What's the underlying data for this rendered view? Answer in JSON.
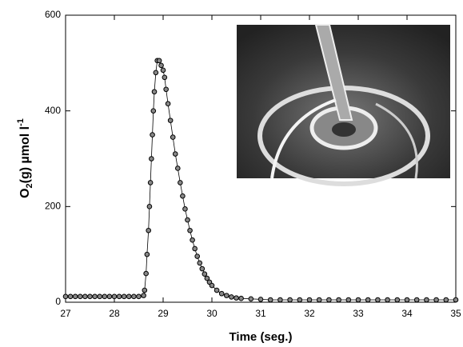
{
  "chart_data": {
    "type": "scatter",
    "xlabel": "Time (seg.)",
    "ylabel": [
      "O",
      "2",
      "(g) µmol l",
      "-1"
    ],
    "xlim": [
      27,
      35
    ],
    "xticks": [
      27,
      28,
      29,
      30,
      31,
      32,
      33,
      34,
      35
    ],
    "ylim": [
      0,
      600
    ],
    "yticks": [
      0,
      200,
      400,
      600
    ],
    "series": [
      {
        "color": "#000000",
        "x": [
          27.0,
          27.1,
          27.2,
          27.3,
          27.4,
          27.5,
          27.6,
          27.7,
          27.8,
          27.9,
          28.0,
          28.1,
          28.2,
          28.3,
          28.4,
          28.5,
          28.6,
          28.62,
          28.65,
          28.67,
          28.7,
          28.72,
          28.74,
          28.76,
          28.78,
          28.8,
          28.82,
          28.85,
          28.88,
          28.92,
          28.96,
          29.0,
          29.03,
          29.06,
          29.1,
          29.15,
          29.2,
          29.25,
          29.3,
          29.35,
          29.4,
          29.45,
          29.5,
          29.55,
          29.6,
          29.65,
          29.7,
          29.75,
          29.8,
          29.85,
          29.9,
          29.95,
          30.0,
          30.1,
          30.2,
          30.3,
          30.4,
          30.5,
          30.6,
          30.8,
          31.0,
          31.2,
          31.4,
          31.6,
          31.8,
          32.0,
          32.2,
          32.4,
          32.6,
          32.8,
          33.0,
          33.2,
          33.4,
          33.6,
          33.8,
          34.0,
          34.2,
          34.4,
          34.6,
          34.8,
          35.0
        ],
        "values": [
          12,
          12,
          12,
          12,
          12,
          12,
          12,
          12,
          12,
          12,
          12,
          12,
          12,
          12,
          12,
          12,
          14,
          25,
          60,
          100,
          150,
          200,
          250,
          300,
          350,
          400,
          440,
          480,
          505,
          505,
          495,
          485,
          470,
          445,
          415,
          380,
          345,
          310,
          280,
          250,
          222,
          195,
          172,
          150,
          130,
          112,
          96,
          82,
          70,
          59,
          50,
          42,
          35,
          25,
          18,
          14,
          11,
          9,
          8,
          7,
          6,
          5,
          5,
          5,
          5,
          5,
          5,
          5,
          5,
          5,
          5,
          5,
          5,
          5,
          5,
          5,
          5,
          5,
          5,
          5,
          5
        ]
      }
    ]
  }
}
